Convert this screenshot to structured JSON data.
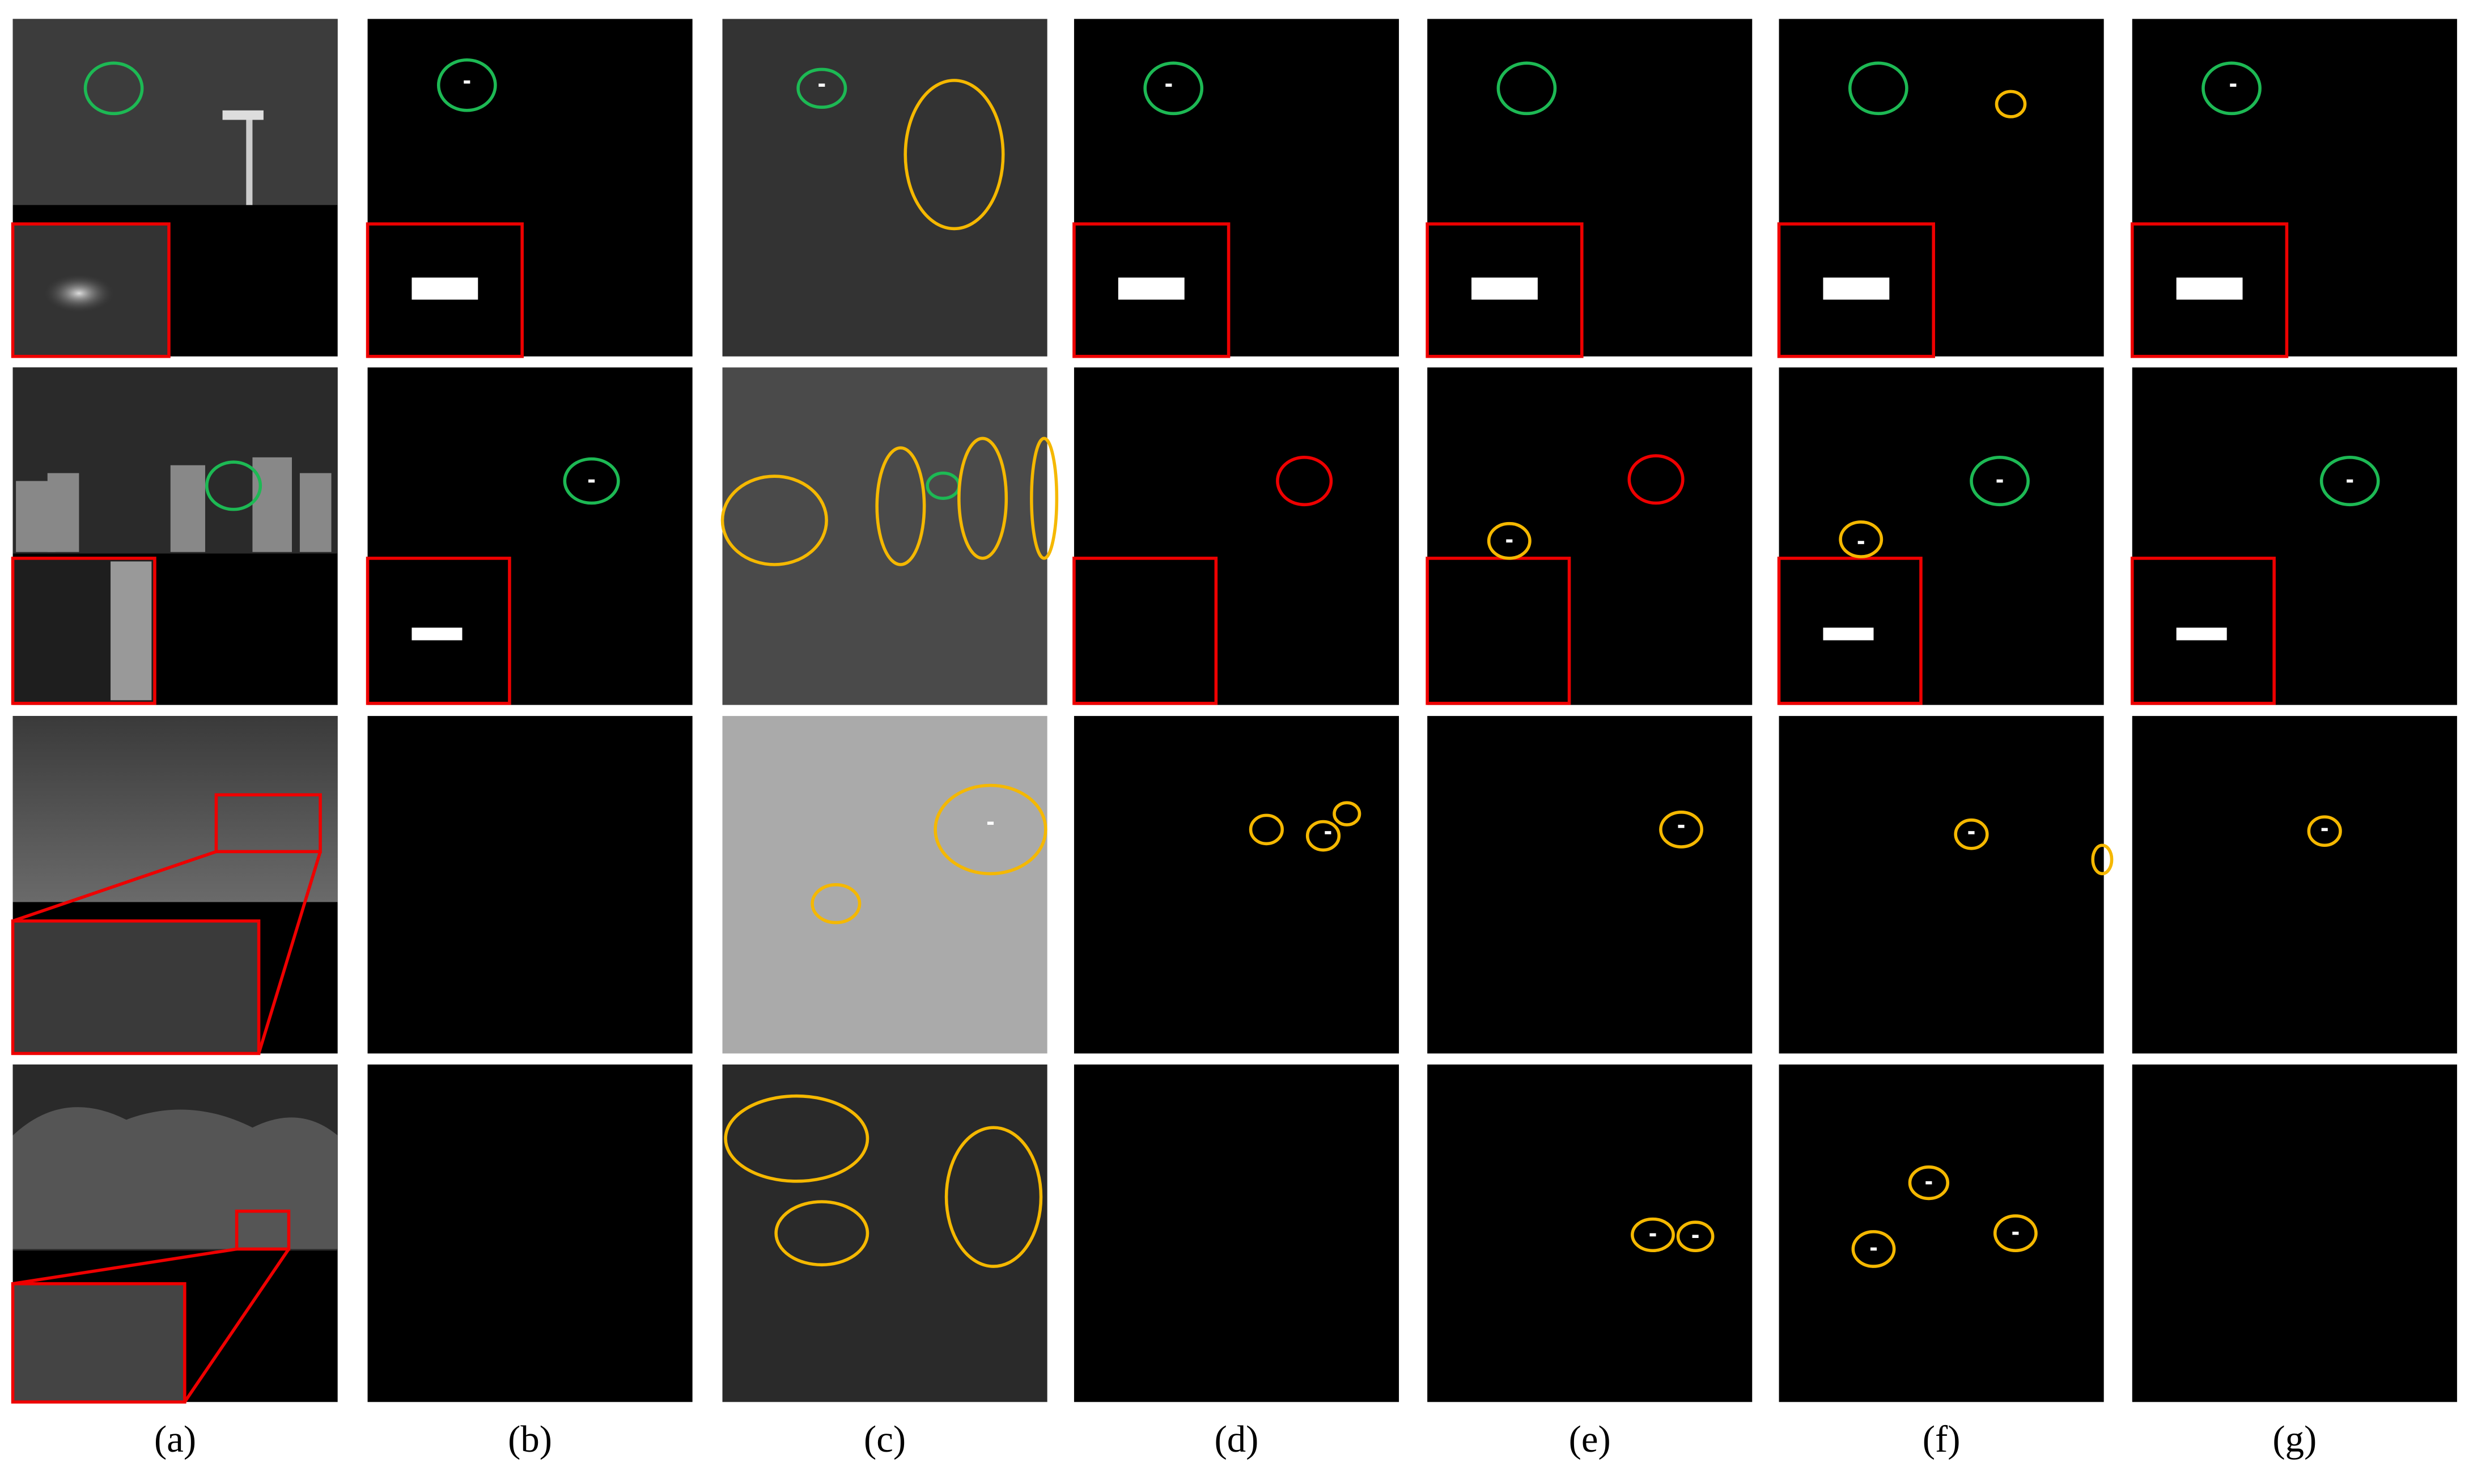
{
  "panels": {
    "labels": [
      "(a)",
      "(b)",
      "(c)",
      "(d)",
      "(e)",
      "(f)",
      "(g)"
    ]
  }
}
